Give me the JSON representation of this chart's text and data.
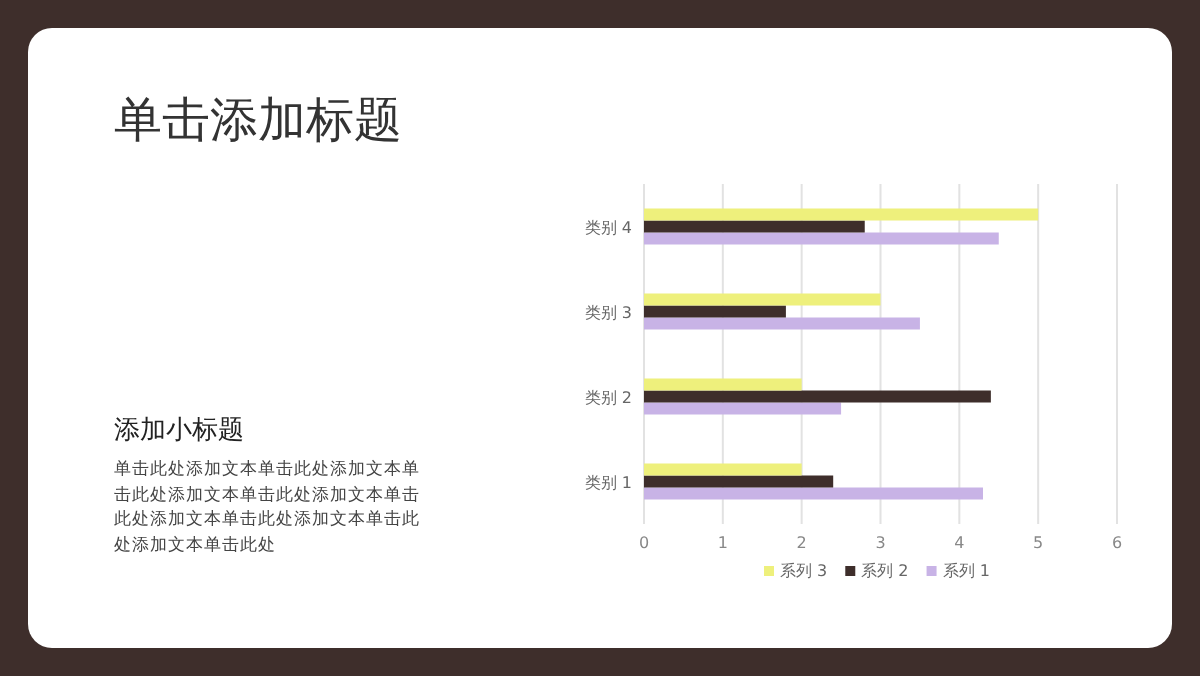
{
  "chart_data": {
    "type": "bar",
    "orientation": "horizontal",
    "title": "单击添加标题",
    "subtitle": "添加小标题",
    "annotations": [
      "单击此处添加文本单击此处添加文本单击此处添加文本单击此处添加文本单击此处添加文本单击此处添加文本单击此处添加文本单击此处"
    ],
    "categories": [
      "类别 4",
      "类别 3",
      "类别 2",
      "类别 1"
    ],
    "series": [
      {
        "name": "系列 1",
        "color": "#c8b3e6",
        "values": [
          4.5,
          3.5,
          2.5,
          4.3
        ]
      },
      {
        "name": "系列 2",
        "color": "#3e2e2b",
        "values": [
          2.8,
          1.8,
          4.4,
          2.4
        ]
      },
      {
        "name": "系列 3",
        "color": "#eef07c",
        "values": [
          5,
          3,
          2,
          2
        ]
      }
    ],
    "xlim": [
      0,
      6
    ],
    "xticks": [
      0,
      1,
      2,
      3,
      4,
      5,
      6
    ],
    "grid": "x",
    "legend": "bottom"
  }
}
